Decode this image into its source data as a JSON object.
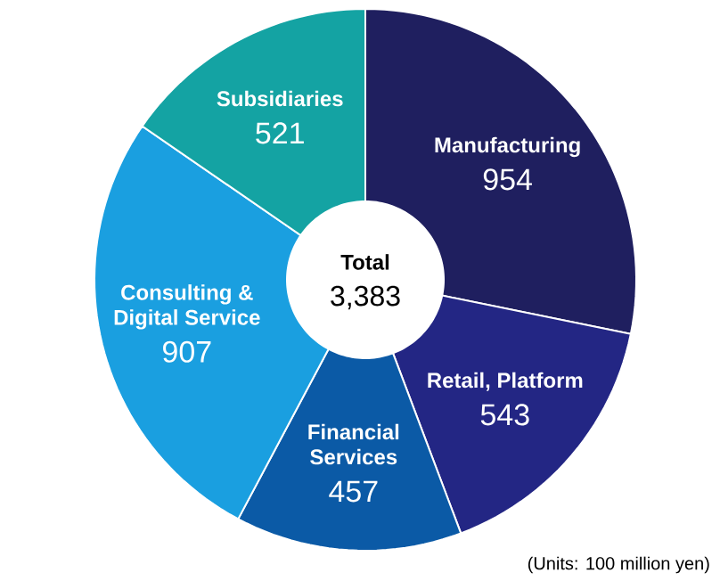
{
  "chart_data": {
    "type": "donut",
    "categories": [
      "Manufacturing",
      "Retail, Platform",
      "Financial Services",
      "Consulting & Digital Service",
      "Subsidiaries"
    ],
    "values": [
      954,
      543,
      457,
      907,
      521
    ],
    "colors": [
      "#1f1f5f",
      "#232684",
      "#0b5aa6",
      "#1a9fe0",
      "#14a3a3"
    ],
    "data_labels": true,
    "annotations": [
      "Total",
      "3,383",
      "(Units: 100 million yen)"
    ]
  }
}
